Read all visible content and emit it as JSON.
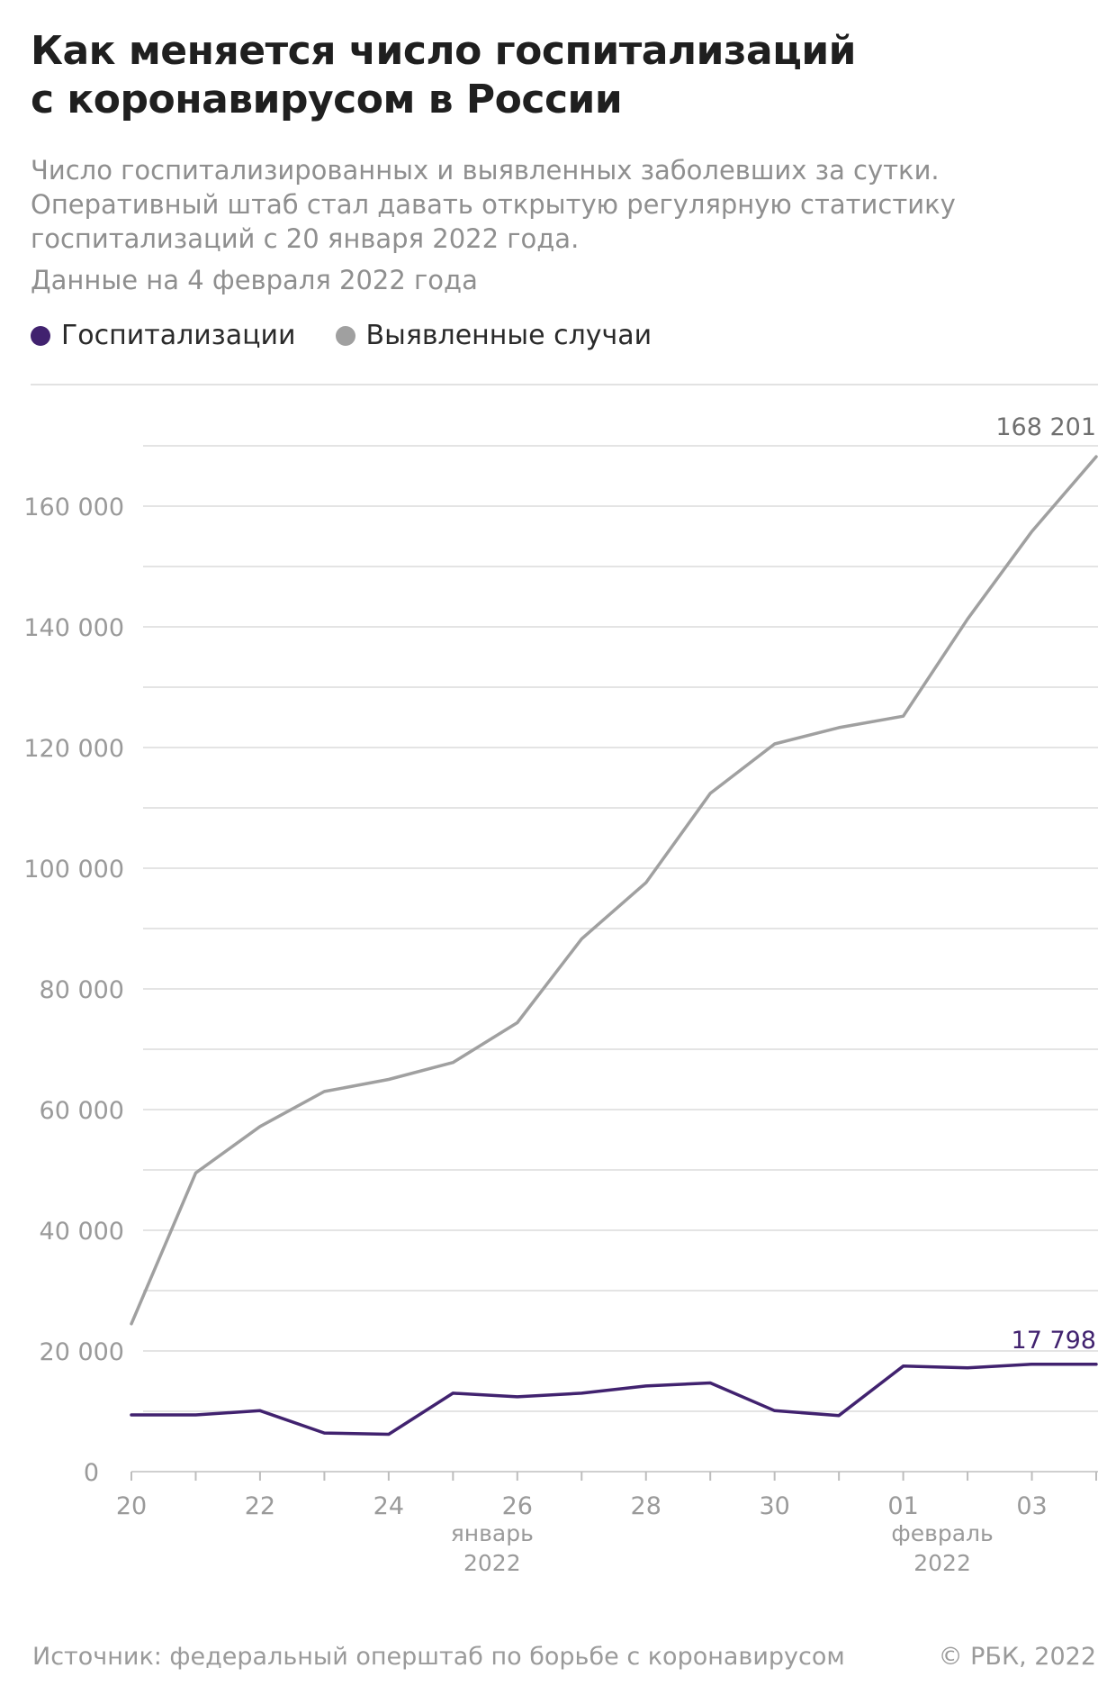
{
  "header": {
    "title_line1": "Как меняется число госпитализаций",
    "title_line2": "с коронавирусом в России",
    "subtitle_line1": "Число госпитализированных и выявленных заболевших за сутки.",
    "subtitle_line2": "Оперативный штаб стал давать открытую регулярную статистику",
    "subtitle_line3": "госпитализаций с 20 января 2022 года.",
    "date_note": "Данные на 4 февраля 2022 года"
  },
  "legend": {
    "items": [
      {
        "label": "Госпитализации",
        "color": "#41226f"
      },
      {
        "label": "Выявленные случаи",
        "color": "#a0a0a0"
      }
    ]
  },
  "chart_data": {
    "type": "line",
    "x": [
      "2022-01-20",
      "2022-01-21",
      "2022-01-22",
      "2022-01-23",
      "2022-01-24",
      "2022-01-25",
      "2022-01-26",
      "2022-01-27",
      "2022-01-28",
      "2022-01-29",
      "2022-01-30",
      "2022-01-31",
      "2022-02-01",
      "2022-02-02",
      "2022-02-03",
      "2022-02-04"
    ],
    "x_tick_labels": [
      {
        "date": "2022-01-20",
        "label": "20"
      },
      {
        "date": "2022-01-22",
        "label": "22"
      },
      {
        "date": "2022-01-24",
        "label": "24"
      },
      {
        "date": "2022-01-26",
        "label": "26"
      },
      {
        "date": "2022-01-28",
        "label": "28"
      },
      {
        "date": "2022-01-30",
        "label": "30"
      },
      {
        "date": "2022-02-01",
        "label": "01"
      },
      {
        "date": "2022-02-03",
        "label": "03"
      }
    ],
    "x_period_labels": [
      {
        "date": "2022-01-26",
        "month": "январь",
        "year": "2022"
      },
      {
        "date": "2022-02-02",
        "month": "февраль",
        "year": "2022"
      }
    ],
    "y_ticks": [
      {
        "value": 0,
        "label": "0"
      },
      {
        "value": 20000,
        "label": "20 000"
      },
      {
        "value": 40000,
        "label": "40 000"
      },
      {
        "value": 60000,
        "label": "60 000"
      },
      {
        "value": 80000,
        "label": "80 000"
      },
      {
        "value": 100000,
        "label": "100 000"
      },
      {
        "value": 120000,
        "label": "120 000"
      },
      {
        "value": 140000,
        "label": "140 000"
      },
      {
        "value": 160000,
        "label": "160 000"
      }
    ],
    "ylim": [
      0,
      172000
    ],
    "grid": true,
    "series": [
      {
        "name": "Выявленные случаи",
        "color": "#a0a0a0",
        "values": [
          24500,
          49500,
          57200,
          63000,
          65000,
          67800,
          74400,
          88300,
          97600,
          112400,
          120600,
          123300,
          125200,
          141300,
          155800,
          168201
        ],
        "end_label": "168 201"
      },
      {
        "name": "Госпитализации",
        "color": "#41226f",
        "values": [
          9400,
          9400,
          10100,
          6400,
          6200,
          13000,
          12400,
          13000,
          14200,
          14700,
          10100,
          9300,
          17500,
          17200,
          17800,
          17798
        ],
        "end_label": "17 798"
      }
    ]
  },
  "footer": {
    "source": "Источник: федеральный оперштаб по борьбе с коронавирусом",
    "copyright": "© РБК, 2022"
  }
}
